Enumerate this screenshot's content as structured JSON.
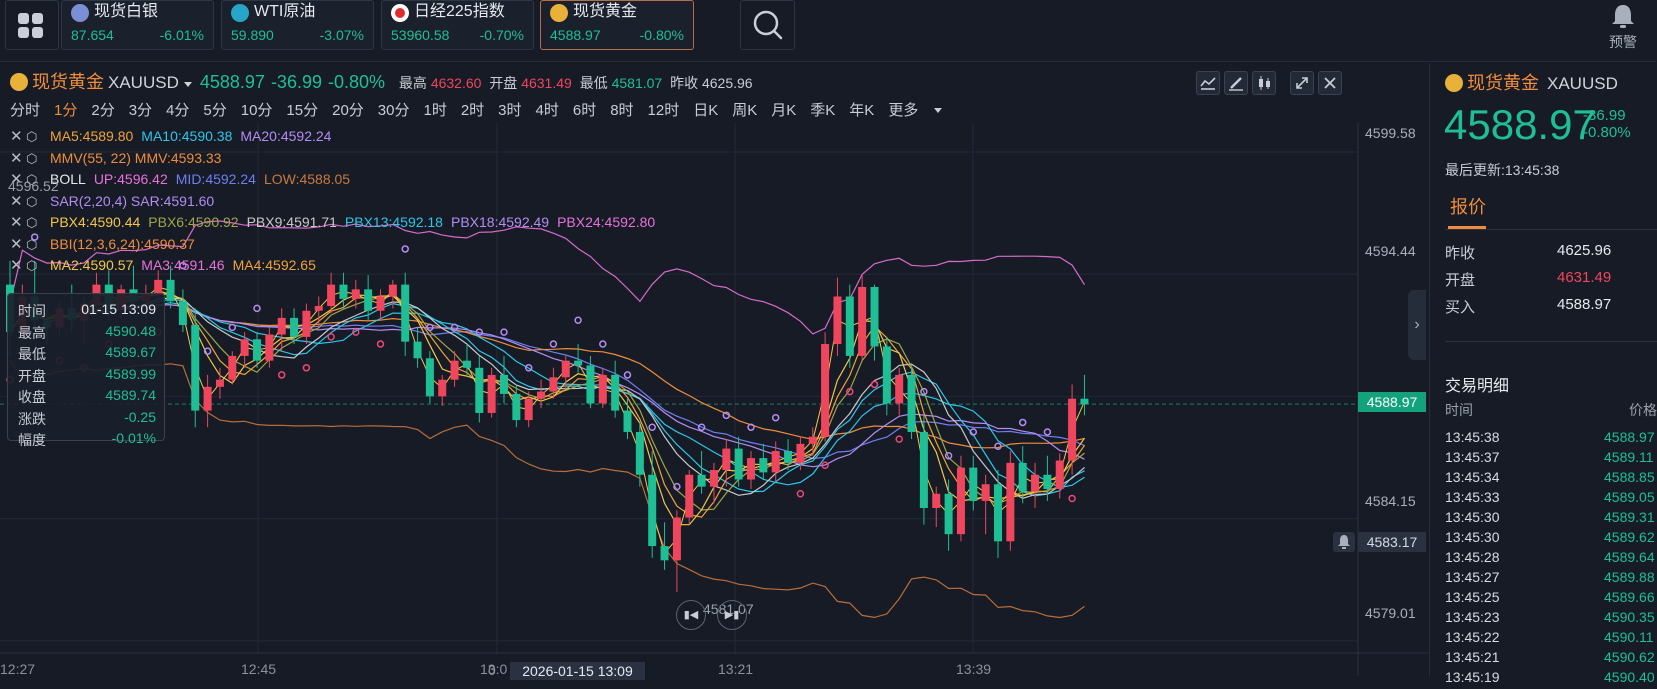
{
  "tickers": [
    {
      "name": "现货白银",
      "price": "87.654",
      "change": "-6.01%",
      "icon": "silver-icon",
      "color": "#7b8fd6"
    },
    {
      "name": "WTI原油",
      "price": "59.890",
      "change": "-3.07%",
      "icon": "oil-icon",
      "color": "#25a6c9"
    },
    {
      "name": "日经225指数",
      "price": "53960.58",
      "change": "-0.70%",
      "icon": "japan-flag-icon",
      "color": "#e12b2b"
    },
    {
      "name": "现货黄金",
      "price": "4588.97",
      "change": "-0.80%",
      "icon": "gold-icon",
      "color": "#e8b13a"
    }
  ],
  "alert_label": "预警",
  "header": {
    "name": "现货黄金",
    "symbol": "XAUUSD",
    "price": "4588.97",
    "change": "-36.99",
    "change_pct": "-0.80%",
    "high_label": "最高",
    "high": "4632.60",
    "open_label": "开盘",
    "open": "4631.49",
    "low_label": "最低",
    "low": "4581.07",
    "prev_label": "昨收",
    "prev": "4625.96"
  },
  "periods": [
    "分时",
    "1分",
    "2分",
    "3分",
    "4分",
    "5分",
    "10分",
    "15分",
    "20分",
    "30分",
    "1时",
    "2时",
    "3时",
    "4时",
    "6时",
    "8时",
    "12时",
    "日K",
    "周K",
    "月K",
    "季K",
    "年K",
    "更多"
  ],
  "active_period": "1分",
  "indicators": [
    {
      "items": [
        {
          "text": "MA5:4589.80",
          "color": "#f0a23c"
        },
        {
          "text": "MA10:4590.38",
          "color": "#2ec6e6"
        },
        {
          "text": "MA20:4592.24",
          "color": "#b48cf2"
        }
      ]
    },
    {
      "items": [
        {
          "text": "MMV(55, 22) MMV:4593.33",
          "color": "#f08d3c"
        }
      ]
    },
    {
      "items": [
        {
          "text": "BOLL",
          "color": "#e6e9ee"
        },
        {
          "text": "UP:4596.42",
          "color": "#e872d8"
        },
        {
          "text": "MID:4592.24",
          "color": "#6f7ff0"
        },
        {
          "text": "LOW:4588.05",
          "color": "#c87a3c"
        }
      ]
    },
    {
      "items": [
        {
          "text": "SAR(2,20,4) SAR:4591.60",
          "color": "#b48cf2"
        }
      ]
    },
    {
      "items": [
        {
          "text": "PBX4:4590.44",
          "color": "#f2c84a"
        },
        {
          "text": "PBX6:4590.92",
          "color": "#a0a64a"
        },
        {
          "text": "PBX9:4591.71",
          "color": "#c9c9c9"
        },
        {
          "text": "PBX13:4592.18",
          "color": "#2ec6e6"
        },
        {
          "text": "PBX18:4592.49",
          "color": "#b48cf2"
        },
        {
          "text": "PBX24:4592.80",
          "color": "#e872d8"
        }
      ]
    },
    {
      "items": [
        {
          "text": "BBI(12,3,6,24):4590.37",
          "color": "#f08d3c"
        }
      ]
    },
    {
      "items": [
        {
          "text": "MA2:4590.57",
          "color": "#f2c84a"
        },
        {
          "text": "MA3:4591.46",
          "color": "#e872d8"
        },
        {
          "text": "MA4:4592.65",
          "color": "#f0a23c"
        }
      ]
    }
  ],
  "y_axis": [
    "4599.58",
    "4594.44",
    "4584.15",
    "4579.01"
  ],
  "x_axis": [
    "12:27",
    "12:45",
    "13:0",
    "13:21",
    "13:39"
  ],
  "current_price_tag": "4588.97",
  "alarm_price_tag": "4583.17",
  "crosshair_time": "2026-01-15 13:09",
  "top_cut_label": "4596.52",
  "min_label": "4581.07",
  "ohlc": [
    {
      "k": "时间",
      "v": "01-15 13:09"
    },
    {
      "k": "最高",
      "v": "4590.48"
    },
    {
      "k": "最低",
      "v": "4589.67"
    },
    {
      "k": "开盘",
      "v": "4589.99"
    },
    {
      "k": "收盘",
      "v": "4589.74"
    },
    {
      "k": "涨跌",
      "v": "-0.25"
    },
    {
      "k": "幅度",
      "v": "-0.01%"
    }
  ],
  "chart_data": {
    "type": "candlestick",
    "y_range": [
      4578.5,
      4600.8
    ],
    "candles": [
      [
        4594.0,
        4595.0,
        4591.0,
        4592.0
      ],
      [
        4592.0,
        4594.0,
        4591.5,
        4593.5
      ],
      [
        4593.5,
        4595.0,
        4592.0,
        4592.5
      ],
      [
        4592.5,
        4593.0,
        4591.5,
        4592.2
      ],
      [
        4592.2,
        4593.3,
        4591.8,
        4593.0
      ],
      [
        4593.0,
        4594.0,
        4592.0,
        4592.5
      ],
      [
        4592.5,
        4593.5,
        4591.5,
        4593.2
      ],
      [
        4593.2,
        4594.5,
        4592.7,
        4594.0
      ],
      [
        4594.0,
        4594.6,
        4592.5,
        4593.0
      ],
      [
        4593.0,
        4594.0,
        4592.5,
        4593.8
      ],
      [
        4593.8,
        4594.8,
        4593.0,
        4593.3
      ],
      [
        4593.3,
        4594.0,
        4592.6,
        4593.6
      ],
      [
        4593.6,
        4594.6,
        4593.0,
        4594.2
      ],
      [
        4594.2,
        4594.8,
        4593.0,
        4593.3
      ],
      [
        4593.3,
        4593.8,
        4592.0,
        4592.3
      ],
      [
        4592.3,
        4593.0,
        4588.0,
        4588.7
      ],
      [
        4588.7,
        4590.2,
        4588.0,
        4589.7
      ],
      [
        4589.7,
        4590.5,
        4589.2,
        4590.0
      ],
      [
        4590.0,
        4591.2,
        4589.8,
        4591.0
      ],
      [
        4591.0,
        4592.0,
        4590.5,
        4591.7
      ],
      [
        4591.7,
        4592.0,
        4590.5,
        4590.8
      ],
      [
        4590.8,
        4592.2,
        4590.5,
        4591.9
      ],
      [
        4591.9,
        4593.0,
        4591.2,
        4592.6
      ],
      [
        4592.6,
        4593.0,
        4591.5,
        4591.8
      ],
      [
        4591.8,
        4593.2,
        4591.5,
        4592.9
      ],
      [
        4592.9,
        4593.5,
        4592.2,
        4593.1
      ],
      [
        4593.1,
        4594.5,
        4592.8,
        4594.0
      ],
      [
        4594.0,
        4594.5,
        4593.0,
        4593.4
      ],
      [
        4593.4,
        4594.2,
        4593.0,
        4593.8
      ],
      [
        4593.8,
        4594.4,
        4592.5,
        4592.9
      ],
      [
        4592.9,
        4593.8,
        4592.5,
        4593.5
      ],
      [
        4593.5,
        4594.2,
        4593.0,
        4594.0
      ],
      [
        4594.0,
        4594.5,
        4591.0,
        4591.6
      ],
      [
        4591.6,
        4592.2,
        4590.5,
        4590.9
      ],
      [
        4590.9,
        4591.2,
        4589.0,
        4589.3
      ],
      [
        4589.3,
        4590.2,
        4588.9,
        4590.0
      ],
      [
        4590.0,
        4591.2,
        4589.7,
        4590.8
      ],
      [
        4590.8,
        4591.5,
        4590.2,
        4590.5
      ],
      [
        4590.5,
        4591.0,
        4588.2,
        4588.6
      ],
      [
        4588.6,
        4590.5,
        4588.4,
        4590.2
      ],
      [
        4590.2,
        4591.0,
        4589.0,
        4589.4
      ],
      [
        4589.4,
        4589.8,
        4588.0,
        4588.3
      ],
      [
        4588.3,
        4589.5,
        4588.0,
        4589.2
      ],
      [
        4589.2,
        4590.0,
        4588.8,
        4589.5
      ],
      [
        4589.5,
        4590.5,
        4589.2,
        4590.1
      ],
      [
        4590.1,
        4591.0,
        4589.6,
        4590.8
      ],
      [
        4590.8,
        4591.5,
        4590.3,
        4590.6
      ],
      [
        4590.6,
        4591.0,
        4588.8,
        4589.0
      ],
      [
        4589.0,
        4590.5,
        4588.8,
        4590.2
      ],
      [
        4590.2,
        4590.8,
        4588.4,
        4588.7
      ],
      [
        4588.7,
        4589.2,
        4587.5,
        4587.8
      ],
      [
        4587.8,
        4588.2,
        4585.5,
        4586.0
      ],
      [
        4586.0,
        4587.0,
        4582.5,
        4583.0
      ],
      [
        4583.0,
        4584.0,
        4582.0,
        4582.4
      ],
      [
        4582.4,
        4584.5,
        4581.07,
        4584.2
      ],
      [
        4584.2,
        4586.2,
        4583.9,
        4586.0
      ],
      [
        4586.0,
        4587.0,
        4585.2,
        4585.5
      ],
      [
        4585.5,
        4586.5,
        4584.8,
        4586.2
      ],
      [
        4586.2,
        4587.5,
        4585.5,
        4587.1
      ],
      [
        4587.1,
        4587.6,
        4585.5,
        4585.8
      ],
      [
        4585.8,
        4587.0,
        4585.4,
        4586.7
      ],
      [
        4586.7,
        4587.3,
        4585.8,
        4586.1
      ],
      [
        4586.1,
        4587.4,
        4585.7,
        4587.0
      ],
      [
        4587.0,
        4587.5,
        4586.2,
        4586.5
      ],
      [
        4586.5,
        4587.6,
        4586.2,
        4587.3
      ],
      [
        4587.3,
        4588.0,
        4586.8,
        4587.6
      ],
      [
        4587.6,
        4592.0,
        4587.4,
        4591.5
      ],
      [
        4591.5,
        4594.3,
        4591.0,
        4593.5
      ],
      [
        4593.5,
        4594.0,
        4590.5,
        4591.0
      ],
      [
        4591.0,
        4594.4,
        4590.8,
        4593.9
      ],
      [
        4593.9,
        4594.0,
        4590.8,
        4591.4
      ],
      [
        4591.4,
        4591.8,
        4588.5,
        4589.0
      ],
      [
        4589.0,
        4590.5,
        4588.5,
        4590.2
      ],
      [
        4590.2,
        4590.6,
        4587.5,
        4587.8
      ],
      [
        4587.8,
        4588.5,
        4583.9,
        4584.6
      ],
      [
        4584.6,
        4585.5,
        4583.8,
        4585.2
      ],
      [
        4585.2,
        4585.8,
        4582.8,
        4583.5
      ],
      [
        4583.5,
        4586.8,
        4583.2,
        4586.3
      ],
      [
        4586.3,
        4586.8,
        4584.5,
        4584.9
      ],
      [
        4584.9,
        4586.0,
        4583.5,
        4585.6
      ],
      [
        4585.6,
        4586.2,
        4582.5,
        4583.2
      ],
      [
        4583.2,
        4587.0,
        4582.8,
        4586.5
      ],
      [
        4586.5,
        4587.2,
        4584.8,
        4585.3
      ],
      [
        4585.3,
        4586.5,
        4584.6,
        4586.0
      ],
      [
        4586.0,
        4586.8,
        4584.9,
        4585.4
      ],
      [
        4585.4,
        4586.9,
        4585.0,
        4586.6
      ],
      [
        4586.6,
        4589.8,
        4586.0,
        4589.2
      ],
      [
        4589.2,
        4590.2,
        4588.5,
        4588.97
      ]
    ]
  },
  "right_panel": {
    "name": "现货黄金",
    "symbol": "XAUUSD",
    "price": "4588.97",
    "change": "-36.99",
    "change_pct": "-0.80%",
    "updated": "最后更新:13:45:38",
    "tab": "报价",
    "quotes": [
      {
        "k": "昨收",
        "v": "4625.96",
        "color": "#e6e9ee"
      },
      {
        "k": "开盘",
        "v": "4631.49",
        "color": "#f0465d"
      },
      {
        "k": "买入",
        "v": "4588.97",
        "color": "#e6e9ee"
      }
    ],
    "trades_title": "交易明细",
    "col_time": "时间",
    "col_price": "价格",
    "trades": [
      {
        "t": "13:45:38",
        "p": "4588.97"
      },
      {
        "t": "13:45:37",
        "p": "4589.11"
      },
      {
        "t": "13:45:34",
        "p": "4588.85"
      },
      {
        "t": "13:45:33",
        "p": "4589.05"
      },
      {
        "t": "13:45:30",
        "p": "4589.31"
      },
      {
        "t": "13:45:30",
        "p": "4589.62"
      },
      {
        "t": "13:45:28",
        "p": "4589.64"
      },
      {
        "t": "13:45:27",
        "p": "4589.88"
      },
      {
        "t": "13:45:25",
        "p": "4589.66"
      },
      {
        "t": "13:45:23",
        "p": "4590.35"
      },
      {
        "t": "13:45:22",
        "p": "4590.11"
      },
      {
        "t": "13:45:21",
        "p": "4590.62"
      },
      {
        "t": "13:45:19",
        "p": "4590.40"
      }
    ]
  },
  "colors": {
    "up": "#f0465d",
    "down": "#1fbf95",
    "accent": "#f08d3c",
    "bg": "#161b26"
  }
}
